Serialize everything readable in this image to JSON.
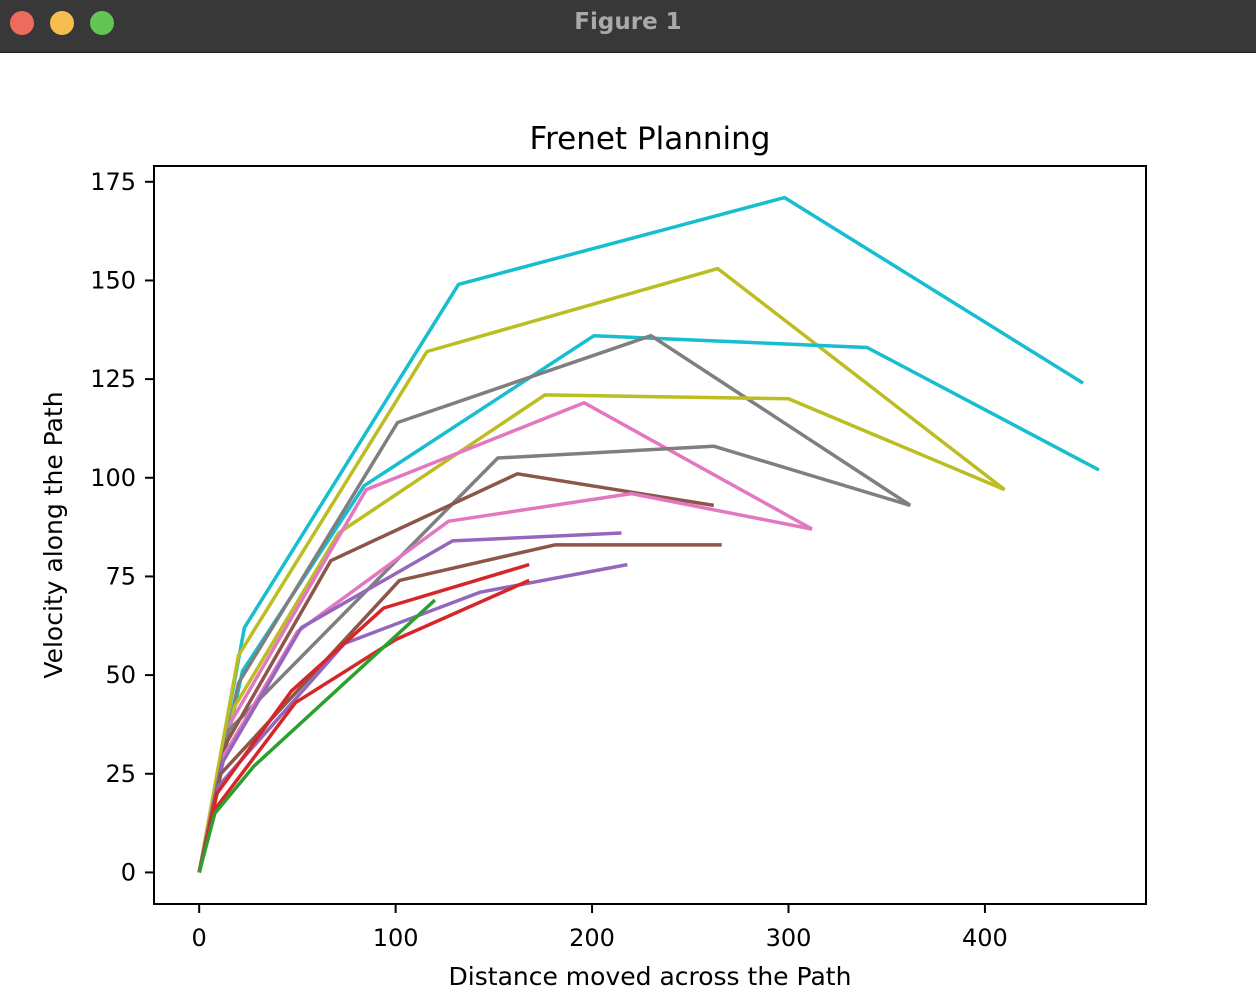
{
  "window": {
    "title": "Figure 1",
    "controls": [
      "close",
      "minimize",
      "maximize"
    ]
  },
  "chart_data": {
    "type": "line",
    "title": "Frenet Planning",
    "xlabel": "Distance moved across the Path",
    "ylabel": "Velocity along the Path",
    "xlim": [
      -23,
      482
    ],
    "ylim": [
      -8,
      179
    ],
    "xticks": [
      0,
      100,
      200,
      300,
      400
    ],
    "yticks": [
      0,
      25,
      50,
      75,
      100,
      125,
      150,
      175
    ],
    "grid": false,
    "legend": "none",
    "series": [
      {
        "color": "#17becf",
        "points": [
          [
            0,
            0
          ],
          [
            23,
            62
          ],
          [
            132,
            149
          ],
          [
            298,
            171
          ],
          [
            450,
            124
          ]
        ]
      },
      {
        "color": "#bcbd22",
        "points": [
          [
            0,
            0
          ],
          [
            20,
            55
          ],
          [
            116,
            132
          ],
          [
            264,
            153
          ],
          [
            410,
            97
          ]
        ]
      },
      {
        "color": "#17becf",
        "points": [
          [
            0,
            0
          ],
          [
            22,
            51
          ],
          [
            84,
            98
          ],
          [
            201,
            136
          ],
          [
            340,
            133
          ],
          [
            458,
            102
          ]
        ]
      },
      {
        "color": "#7f7f7f",
        "points": [
          [
            0,
            0
          ],
          [
            20,
            48
          ],
          [
            101,
            114
          ],
          [
            230,
            136
          ],
          [
            362,
            93
          ]
        ]
      },
      {
        "color": "#bcbd22",
        "points": [
          [
            0,
            0
          ],
          [
            18,
            42
          ],
          [
            71,
            86
          ],
          [
            176,
            121
          ],
          [
            300,
            120
          ],
          [
            410,
            97
          ]
        ]
      },
      {
        "color": "#e377c2",
        "points": [
          [
            0,
            0
          ],
          [
            16,
            38
          ],
          [
            85,
            97
          ],
          [
            196,
            119
          ],
          [
            312,
            87
          ]
        ]
      },
      {
        "color": "#7f7f7f",
        "points": [
          [
            0,
            0
          ],
          [
            15,
            36
          ],
          [
            152,
            105
          ],
          [
            262,
            108
          ],
          [
            362,
            93
          ]
        ]
      },
      {
        "color": "#8c564b",
        "points": [
          [
            0,
            0
          ],
          [
            14,
            33
          ],
          [
            67,
            79
          ],
          [
            162,
            101
          ],
          [
            262,
            93
          ]
        ]
      },
      {
        "color": "#e377c2",
        "points": [
          [
            0,
            0
          ],
          [
            13,
            30
          ],
          [
            50,
            61
          ],
          [
            127,
            89
          ],
          [
            220,
            96
          ],
          [
            312,
            87
          ]
        ]
      },
      {
        "color": "#9467bd",
        "points": [
          [
            0,
            0
          ],
          [
            12,
            28
          ],
          [
            52,
            62
          ],
          [
            129,
            84
          ],
          [
            215,
            86
          ]
        ]
      },
      {
        "color": "#8c564b",
        "points": [
          [
            0,
            0
          ],
          [
            11,
            25
          ],
          [
            102,
            74
          ],
          [
            181,
            83
          ],
          [
            266,
            83
          ]
        ]
      },
      {
        "color": "#9467bd",
        "points": [
          [
            0,
            0
          ],
          [
            10,
            22
          ],
          [
            74,
            58
          ],
          [
            143,
            71
          ],
          [
            218,
            78
          ]
        ]
      },
      {
        "color": "#d62728",
        "points": [
          [
            0,
            0
          ],
          [
            9,
            20
          ],
          [
            47,
            46
          ],
          [
            94,
            67
          ],
          [
            168,
            78
          ]
        ]
      },
      {
        "color": "#d62728",
        "points": [
          [
            0,
            0
          ],
          [
            8,
            16
          ],
          [
            49,
            43
          ],
          [
            100,
            59
          ],
          [
            168,
            74
          ]
        ]
      },
      {
        "color": "#2ca02c",
        "points": [
          [
            0,
            0
          ],
          [
            8,
            15
          ],
          [
            28,
            27
          ],
          [
            120,
            69
          ]
        ]
      }
    ]
  }
}
